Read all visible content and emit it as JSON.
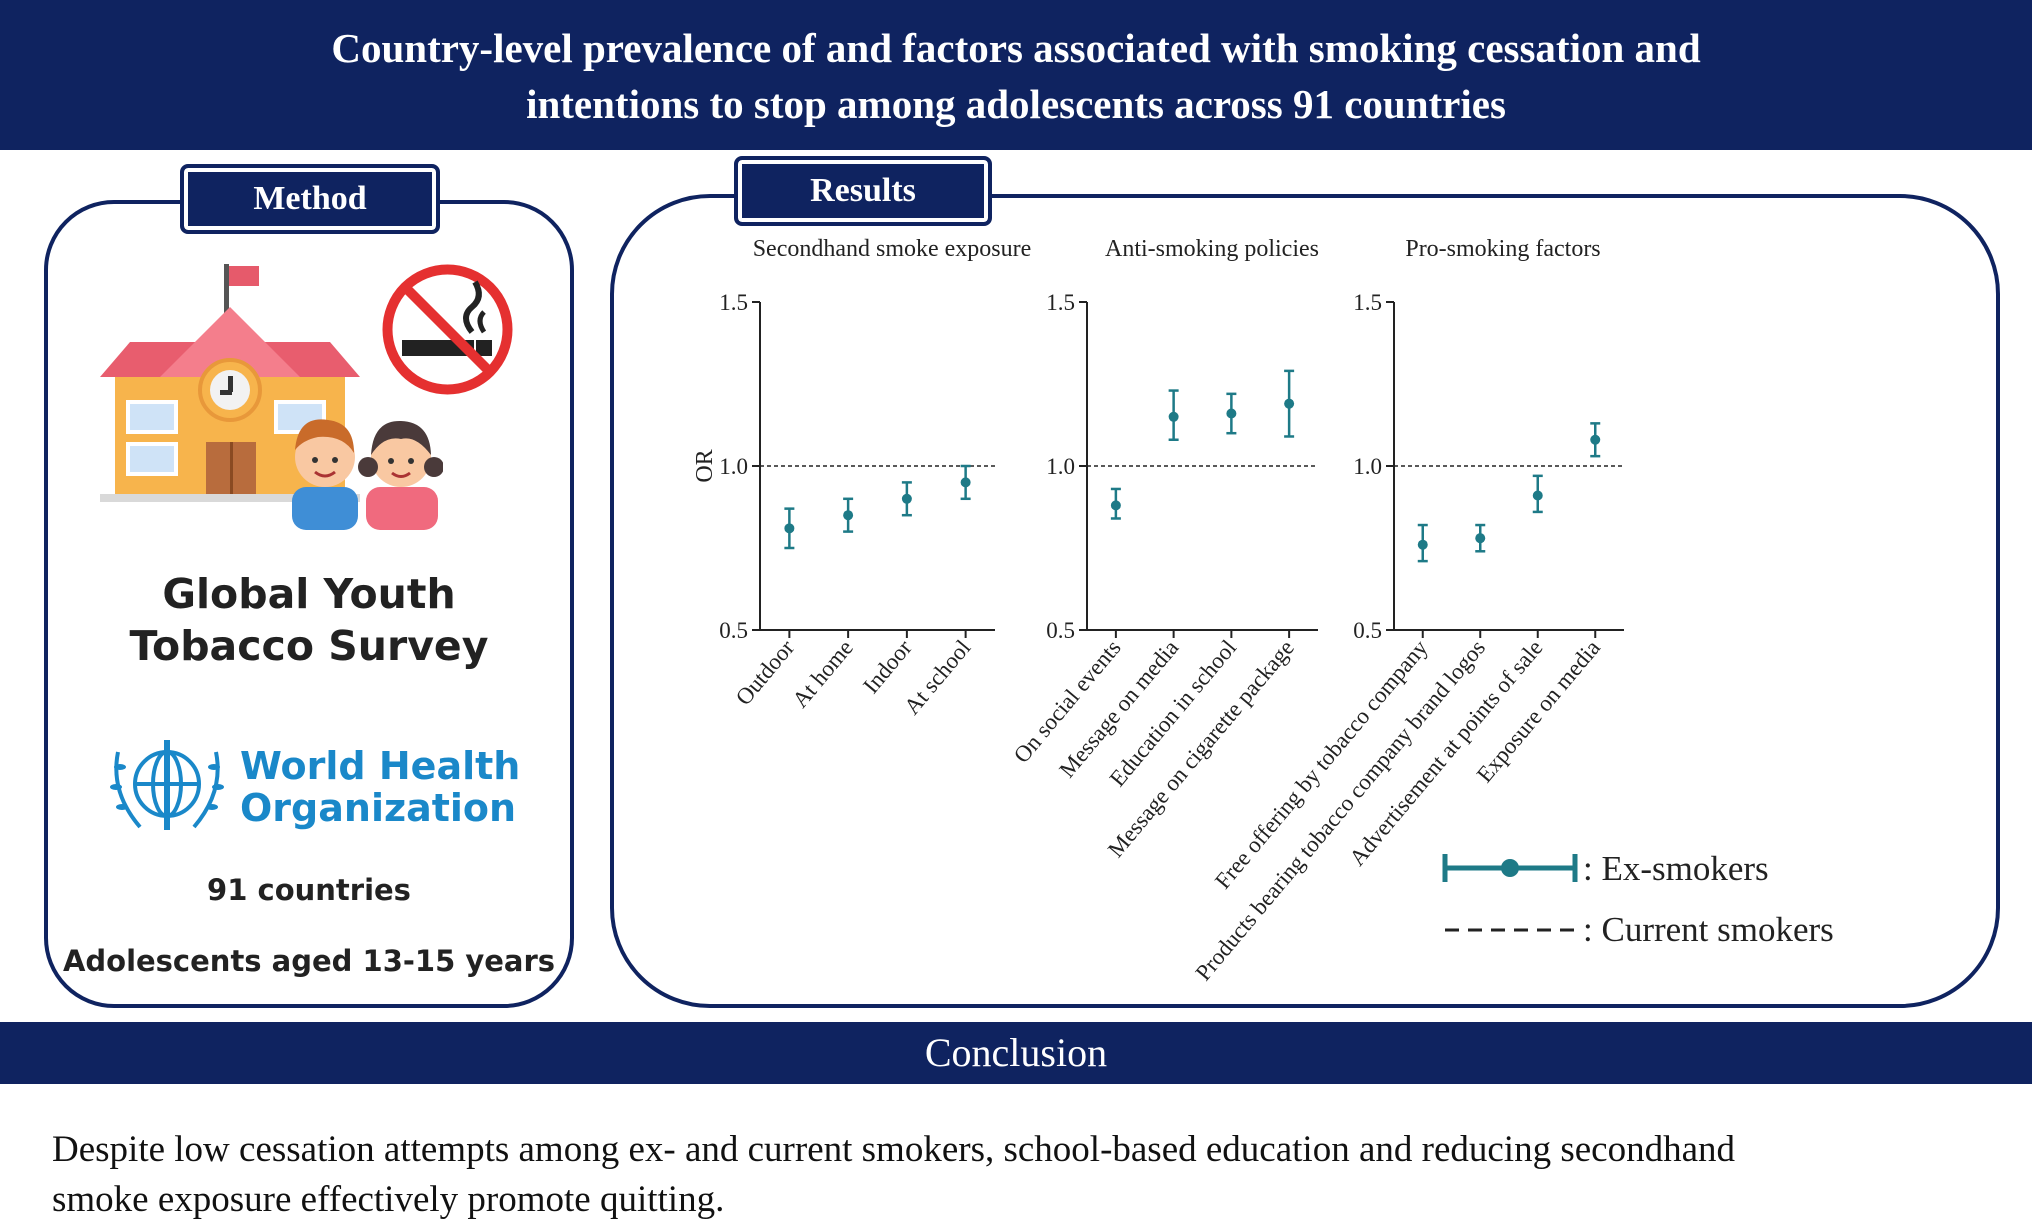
{
  "header": {
    "title_line1": "Country-level prevalence of and factors associated with smoking cessation and",
    "title_line2": "intentions to stop among adolescents across 91 countries"
  },
  "method": {
    "label": "Method",
    "survey_line1": "Global Youth",
    "survey_line2": "Tobacco Survey",
    "who_line1": "World Health",
    "who_line2": "Organization",
    "countries": "91 countries",
    "population": "Adolescents aged 13-15 years"
  },
  "results": {
    "label": "Results"
  },
  "legend": {
    "ex_smokers": ": Ex-smokers",
    "current_smokers": ": Current smokers"
  },
  "colors": {
    "navy": "#0f2360",
    "teal": "#1e7a87"
  },
  "icons": [
    "school-building-icon",
    "no-smoking-icon",
    "children-icon",
    "who-emblem-icon"
  ],
  "chart_data": [
    {
      "type": "scatter",
      "title": "Secondhand smoke exposure",
      "ylabel": "OR",
      "ylim": [
        0.5,
        1.5
      ],
      "yticks": [
        "0.5",
        "1.0",
        "1.5"
      ],
      "reference_line": 1.0,
      "categories": [
        "Outdoor",
        "At home",
        "Indoor",
        "At school"
      ],
      "series": [
        {
          "name": "Ex-smokers",
          "values": [
            0.81,
            0.85,
            0.9,
            0.95
          ],
          "lower": [
            0.75,
            0.8,
            0.85,
            0.9
          ],
          "upper": [
            0.87,
            0.9,
            0.95,
            1.0
          ]
        }
      ]
    },
    {
      "type": "scatter",
      "title": "Anti-smoking policies",
      "ylabel": "",
      "ylim": [
        0.5,
        1.5
      ],
      "yticks": [
        "0.5",
        "1.0",
        "1.5"
      ],
      "reference_line": 1.0,
      "categories": [
        "On social events",
        "Message on media",
        "Education in school",
        "Message on cigarette package"
      ],
      "series": [
        {
          "name": "Ex-smokers",
          "values": [
            0.88,
            1.15,
            1.16,
            1.19
          ],
          "lower": [
            0.84,
            1.08,
            1.1,
            1.09
          ],
          "upper": [
            0.93,
            1.23,
            1.22,
            1.29
          ]
        }
      ]
    },
    {
      "type": "scatter",
      "title": "Pro-smoking factors",
      "ylabel": "",
      "ylim": [
        0.5,
        1.5
      ],
      "yticks": [
        "0.5",
        "1.0",
        "1.5"
      ],
      "reference_line": 1.0,
      "categories": [
        "Free offering by tobacco company",
        "Products bearing tobacco company brand logos",
        "Advertisement at points of sale",
        "Exposure on media"
      ],
      "series": [
        {
          "name": "Ex-smokers",
          "values": [
            0.76,
            0.78,
            0.91,
            1.08
          ],
          "lower": [
            0.71,
            0.74,
            0.86,
            1.03
          ],
          "upper": [
            0.82,
            0.82,
            0.97,
            1.13
          ]
        }
      ]
    }
  ],
  "conclusion": {
    "label": "Conclusion",
    "text_line1": "Despite low cessation attempts among ex- and current smokers, school-based education and reducing secondhand",
    "text_line2": "smoke exposure effectively promote quitting."
  }
}
